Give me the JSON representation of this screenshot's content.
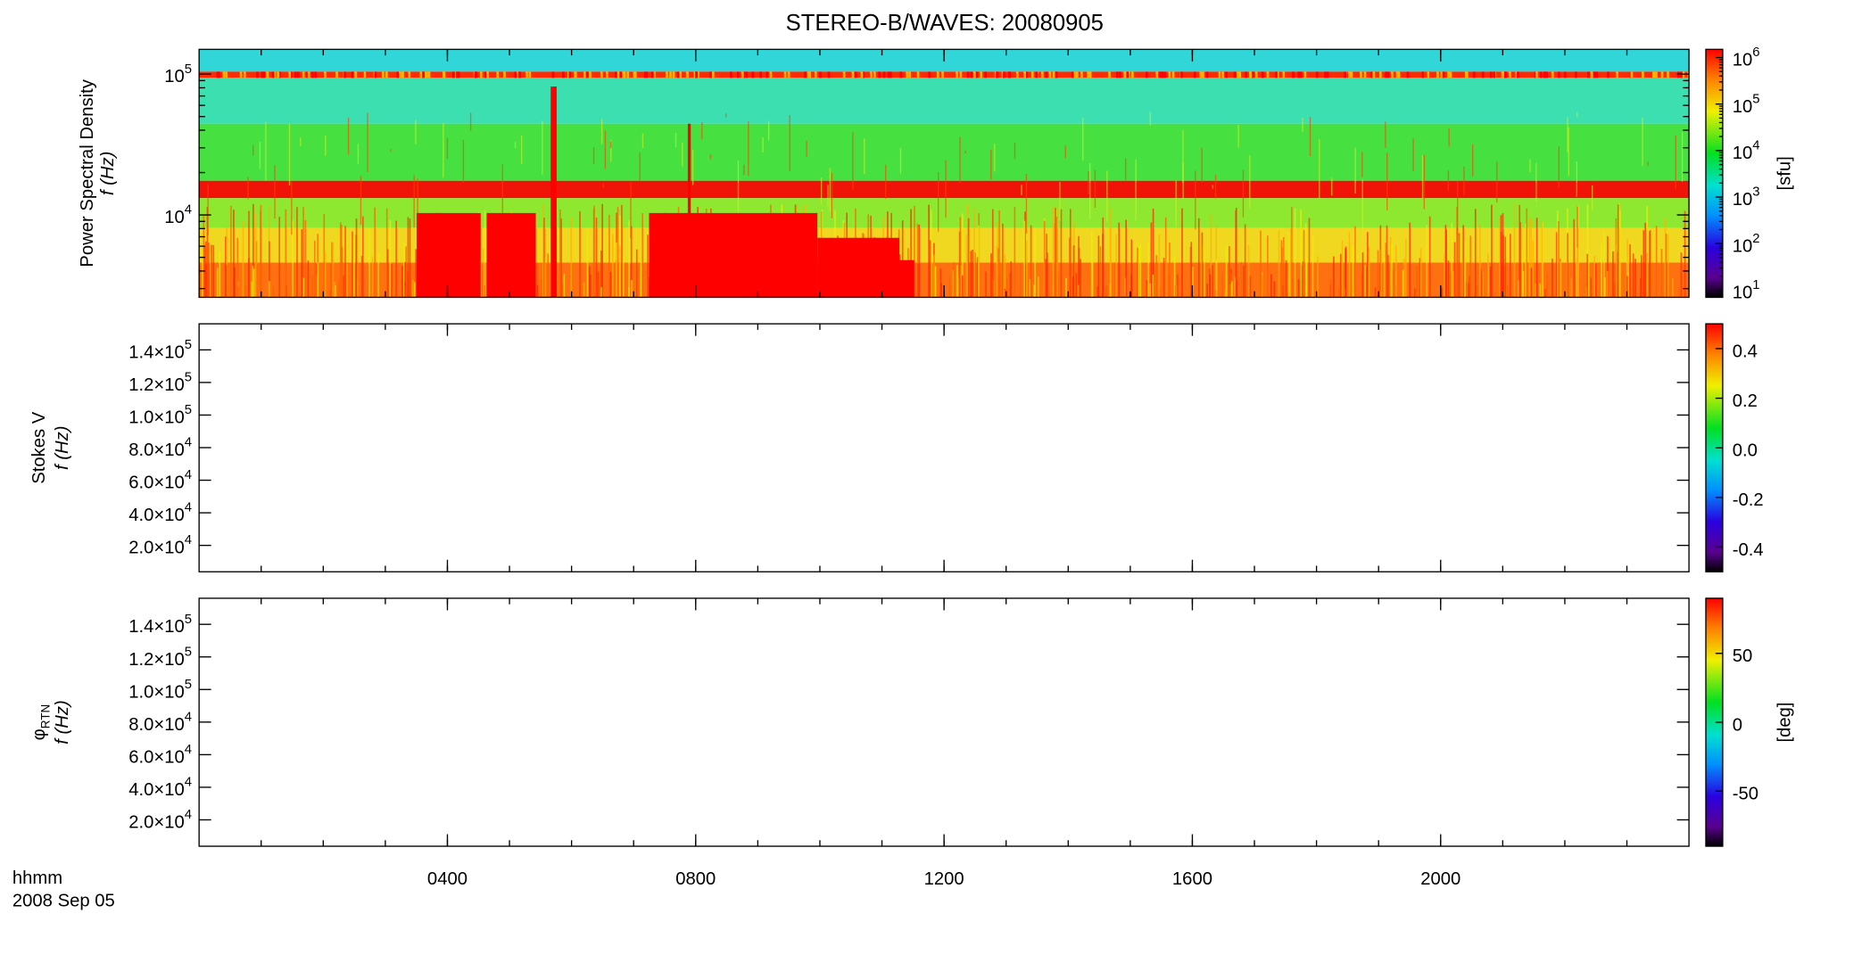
{
  "title": "STEREO-B/WAVES: 20080905",
  "x_axis": {
    "label": "hhmm",
    "date": "2008 Sep 05",
    "xlim": [
      0,
      24
    ],
    "xticks": [
      {
        "value": 4,
        "label": "0400"
      },
      {
        "value": 8,
        "label": "0800"
      },
      {
        "value": 12,
        "label": "1200"
      },
      {
        "value": 16,
        "label": "1600"
      },
      {
        "value": 20,
        "label": "2000"
      }
    ],
    "minor_step": 1
  },
  "chart_data": [
    {
      "type": "heatmap",
      "ylabel": "Power Spectral Density",
      "ylabel2": "f (Hz)",
      "ylog": true,
      "ylim": [
        2600,
        150000
      ],
      "yticks": [
        {
          "value": 10000,
          "label": "10",
          "exponent": "4"
        },
        {
          "value": 100000,
          "label": "10",
          "exponent": "5"
        }
      ],
      "colorbar": {
        "log": true,
        "clim": [
          7,
          1500000
        ],
        "label": "[sfu]",
        "ticks": [
          {
            "value": 10,
            "label": "10",
            "exponent": "1"
          },
          {
            "value": 100,
            "label": "10",
            "exponent": "2"
          },
          {
            "value": 1000,
            "label": "10",
            "exponent": "3"
          },
          {
            "value": 10000,
            "label": "10",
            "exponent": "4"
          },
          {
            "value": 100000,
            "label": "10",
            "exponent": "5"
          },
          {
            "value": 1000000,
            "label": "10",
            "exponent": "6"
          }
        ]
      }
    },
    {
      "type": "heatmap",
      "ylabel": "Stokes V",
      "ylabel2": "f (Hz)",
      "ylog": false,
      "ylim": [
        3800,
        156000
      ],
      "yticks": [
        {
          "value": 20000,
          "label": "2.0×10",
          "exponent": "4"
        },
        {
          "value": 40000,
          "label": "4.0×10",
          "exponent": "4"
        },
        {
          "value": 60000,
          "label": "6.0×10",
          "exponent": "4"
        },
        {
          "value": 80000,
          "label": "8.0×10",
          "exponent": "4"
        },
        {
          "value": 100000,
          "label": "1.0×10",
          "exponent": "5"
        },
        {
          "value": 120000,
          "label": "1.2×10",
          "exponent": "5"
        },
        {
          "value": 140000,
          "label": "1.4×10",
          "exponent": "5"
        }
      ],
      "colorbar": {
        "log": false,
        "clim": [
          -0.5,
          0.5
        ],
        "ticks": [
          -0.4,
          -0.2,
          {
            "value": 0,
            "label": "0.0"
          },
          0.2,
          0.4
        ]
      }
    },
    {
      "type": "heatmap",
      "ylabel": "φ",
      "ylabel_subscript": "RTN",
      "ylabel2": "f (Hz)",
      "ylog": false,
      "ylim": [
        3800,
        156000
      ],
      "yticks": [
        {
          "value": 20000,
          "label": "2.0×10",
          "exponent": "4"
        },
        {
          "value": 40000,
          "label": "4.0×10",
          "exponent": "4"
        },
        {
          "value": 60000,
          "label": "6.0×10",
          "exponent": "4"
        },
        {
          "value": 80000,
          "label": "8.0×10",
          "exponent": "4"
        },
        {
          "value": 100000,
          "label": "1.0×10",
          "exponent": "5"
        },
        {
          "value": 120000,
          "label": "1.2×10",
          "exponent": "5"
        },
        {
          "value": 140000,
          "label": "1.4×10",
          "exponent": "5"
        }
      ],
      "colorbar": {
        "log": false,
        "clim": [
          -90,
          90
        ],
        "label": "[deg]",
        "ticks": [
          -50,
          0,
          50
        ]
      }
    }
  ]
}
